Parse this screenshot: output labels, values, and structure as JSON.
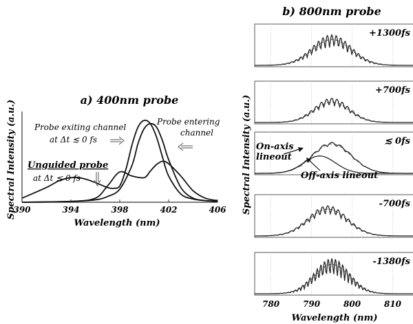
{
  "chart_data": [
    {
      "type": "line",
      "title": "a) 400nm probe",
      "xlabel": "Wavelength (nm)",
      "ylabel": "Spectral Intensity (a.u.)",
      "xlim": [
        390,
        406
      ],
      "xticks": [
        "390",
        "394",
        "398",
        "402",
        "406"
      ],
      "annotations": {
        "unguided": "Unguided probe",
        "unguided_dt": "at Δt ≲   0 fs",
        "exiting": "Probe exiting channel",
        "exiting_dt": "at Δt ≲ 0 fs",
        "entering1": "Probe entering",
        "entering2": "channel"
      },
      "series": [
        {
          "x": [
            390,
            392,
            393,
            394,
            395,
            396,
            397,
            397.5,
            398,
            398.5,
            399,
            399.5,
            400,
            400.5,
            401,
            401.5,
            402,
            403,
            404,
            405,
            406
          ],
          "values": [
            0.05,
            0.18,
            0.26,
            0.3,
            0.29,
            0.24,
            0.18,
            0.17,
            0.2,
            0.4,
            0.7,
            0.92,
            1.0,
            0.96,
            0.8,
            0.55,
            0.32,
            0.1,
            0.04,
            0.02,
            0.01
          ]
        },
        {
          "x": [
            390,
            394,
            396,
            397,
            398,
            399,
            399.5,
            400,
            400.5,
            401,
            401.5,
            402,
            403,
            404,
            405,
            406
          ],
          "values": [
            0.0,
            0.01,
            0.03,
            0.07,
            0.16,
            0.45,
            0.72,
            0.9,
            0.96,
            0.92,
            0.75,
            0.52,
            0.18,
            0.05,
            0.02,
            0.01
          ]
        },
        {
          "x": [
            390,
            394,
            396,
            397,
            398,
            399,
            400,
            400.5,
            401,
            401.5,
            402,
            403,
            404,
            405,
            406
          ],
          "values": [
            0.0,
            0.01,
            0.05,
            0.2,
            0.37,
            0.32,
            0.3,
            0.38,
            0.46,
            0.5,
            0.47,
            0.32,
            0.14,
            0.05,
            0.02
          ]
        }
      ]
    },
    {
      "type": "line",
      "title": "b) 800nm probe",
      "xlabel": "Wavelength (nm)",
      "ylabel": "Spectral Intensity (a.u.)",
      "xlim": [
        776,
        815
      ],
      "xticks": [
        "780",
        "790",
        "800",
        "810"
      ],
      "annotations": {
        "on_axis1": "On-axis",
        "on_axis2": "lineout",
        "off_axis": "Off-axis lineout"
      },
      "panels": [
        {
          "delay": "+1300fs",
          "center": 795,
          "width": 9,
          "amp": 0.85,
          "mod": 0.35,
          "period": 1.1,
          "dashAmp": 0.82
        },
        {
          "delay": "+700fs",
          "center": 795,
          "width": 8,
          "amp": 0.7,
          "mod": 0.25,
          "period": 1.3,
          "dashAmp": 0.65
        },
        {
          "delay": "≲  0fs",
          "center": 795,
          "width": 9,
          "amp": 0.95,
          "mod": 0.08,
          "period": 2.2,
          "dashAmp": 0.93
        },
        {
          "delay": "-700fs",
          "center": 794,
          "width": 9,
          "amp": 0.88,
          "mod": 0.22,
          "period": 1.3,
          "dashAmp": 0.85
        },
        {
          "delay": "-1380fs",
          "center": 795,
          "width": 8,
          "amp": 0.95,
          "mod": 0.45,
          "period": 0.9,
          "dashAmp": 0.93
        }
      ]
    }
  ]
}
